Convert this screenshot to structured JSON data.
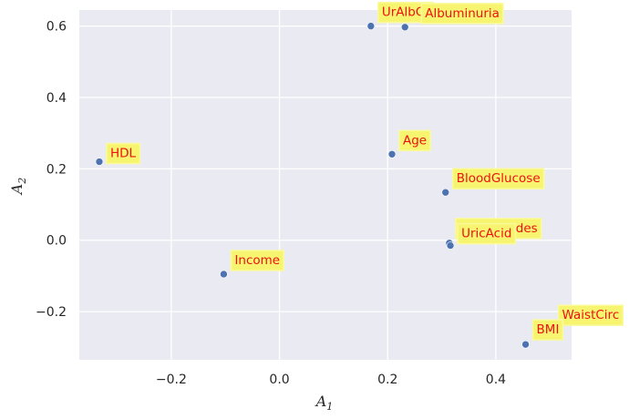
{
  "chart_data": {
    "type": "scatter",
    "title": "",
    "xlabel": "A",
    "xlabel_sub": "1",
    "ylabel": "A",
    "ylabel_sub": "2",
    "xlim": [
      -0.37,
      0.54
    ],
    "ylim": [
      -0.335,
      0.645
    ],
    "xticks": [
      -0.2,
      0.0,
      0.2,
      0.4
    ],
    "xtick_labels": [
      "−0.2",
      "0.0",
      "0.2",
      "0.4"
    ],
    "yticks": [
      -0.2,
      0.0,
      0.2,
      0.4,
      0.6
    ],
    "ytick_labels": [
      "−0.2",
      "0.0",
      "0.2",
      "0.4",
      "0.6"
    ],
    "grid": true,
    "background": "#eaeaf2",
    "point_color": "#4c72b0",
    "label_color": "#ee1111",
    "label_box_color": "#f7f570",
    "points": [
      {
        "label": "UrAlbCr",
        "x": 0.169,
        "y": 0.6
      },
      {
        "label": "Albuminuria",
        "x": 0.232,
        "y": 0.597
      },
      {
        "label": "HDL",
        "x": -0.333,
        "y": 0.22
      },
      {
        "label": "Age",
        "x": 0.208,
        "y": 0.241
      },
      {
        "label": "BloodGlucose",
        "x": 0.307,
        "y": 0.134
      },
      {
        "label": "Triglycerides",
        "x": 0.314,
        "y": -0.008
      },
      {
        "label": "UricAcid",
        "x": 0.316,
        "y": -0.015
      },
      {
        "label": "Income",
        "x": -0.103,
        "y": -0.095
      },
      {
        "label": "WaistCirc",
        "x": 0.455,
        "y": -0.292
      },
      {
        "label": "BMI",
        "x": 0.455,
        "y": -0.292
      }
    ]
  }
}
